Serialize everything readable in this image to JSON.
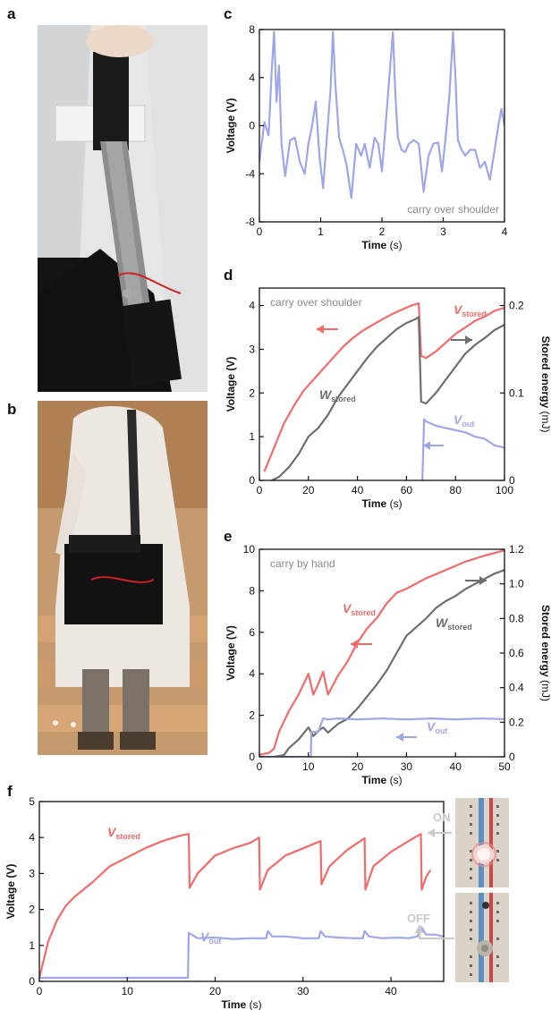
{
  "panels": {
    "a": "a",
    "b": "b",
    "c": "c",
    "d": "d",
    "e": "e",
    "f": "f"
  },
  "photo_indicators": {
    "on": "ON",
    "off": "OFF"
  },
  "colors": {
    "v_stored": "#f26b6b",
    "w_stored": "#6e6e6e",
    "v_out": "#9fa6ea",
    "indicator": "#c9c9c9"
  },
  "chart_data": [
    {
      "id": "c",
      "type": "line",
      "xlabel": "Time",
      "xunit": "(s)",
      "ylabel": "Voltage (V)",
      "xlim": [
        0,
        4
      ],
      "ylim": [
        -8,
        8
      ],
      "xticks": [
        0,
        1,
        2,
        3,
        4
      ],
      "yticks": [
        -8,
        -4,
        0,
        4,
        8
      ],
      "annotation": "carry over shoulder",
      "series": [
        {
          "color": "#9fa6ea",
          "x": [
            0,
            0.08,
            0.15,
            0.2,
            0.24,
            0.28,
            0.32,
            0.36,
            0.42,
            0.5,
            0.58,
            0.66,
            0.74,
            0.8,
            0.86,
            0.92,
            0.98,
            1.04,
            1.1,
            1.16,
            1.2,
            1.24,
            1.3,
            1.36,
            1.42,
            1.5,
            1.58,
            1.66,
            1.72,
            1.8,
            1.88,
            1.94,
            2.0,
            2.06,
            2.12,
            2.18,
            2.22,
            2.26,
            2.32,
            2.38,
            2.44,
            2.52,
            2.6,
            2.68,
            2.76,
            2.84,
            2.92,
            2.98,
            3.04,
            3.1,
            3.16,
            3.2,
            3.24,
            3.3,
            3.36,
            3.44,
            3.52,
            3.6,
            3.68,
            3.76,
            3.84,
            3.9,
            3.95,
            4.0
          ],
          "y": [
            -3,
            0.3,
            -0.8,
            4.5,
            7.8,
            2,
            5,
            -1.5,
            -4.2,
            -1.2,
            -1,
            -3,
            -4,
            -1.5,
            0,
            2,
            -2.5,
            -5.2,
            -1,
            3,
            7.8,
            3.5,
            -1,
            -2,
            -3.2,
            -6,
            -1.5,
            -2.5,
            -1.5,
            -3.5,
            -1,
            -1.5,
            -3.8,
            0,
            4,
            7.8,
            2.5,
            -1,
            -2,
            -2.2,
            -1.5,
            -1.2,
            -1.5,
            -5.5,
            -2.5,
            -1.5,
            -1.4,
            -3.8,
            -1,
            2.5,
            7.8,
            4,
            -1.2,
            -2,
            -2.5,
            -2,
            -2,
            -3.5,
            -3,
            -4.5,
            -2,
            0,
            1.4,
            0
          ]
        }
      ]
    },
    {
      "id": "d",
      "type": "line",
      "xlabel": "Time",
      "xunit": "(s)",
      "ylabel": "Voltage (V)",
      "y2label": "Stored energy",
      "y2unit": "(mJ)",
      "xlim": [
        0,
        100
      ],
      "ylim": [
        0,
        4.4
      ],
      "y2lim": [
        0,
        0.22
      ],
      "xticks": [
        0,
        20,
        40,
        60,
        80,
        100
      ],
      "yticks": [
        0,
        1,
        2,
        3,
        4
      ],
      "y2ticks": [
        0,
        0.1,
        0.2
      ],
      "annotation": "carry over shoulder",
      "series": [
        {
          "name": "V",
          "sub": "stored",
          "axis": "left",
          "color": "#f26b6b",
          "x": [
            2,
            6,
            10,
            14,
            18,
            22,
            26,
            30,
            34,
            38,
            42,
            46,
            50,
            54,
            58,
            62,
            65,
            66,
            68,
            72,
            76,
            80,
            84,
            88,
            92,
            96,
            100
          ],
          "y": [
            0.2,
            0.75,
            1.3,
            1.7,
            2.05,
            2.3,
            2.55,
            2.8,
            3.05,
            3.25,
            3.42,
            3.55,
            3.68,
            3.8,
            3.9,
            4.0,
            4.05,
            2.85,
            2.8,
            2.95,
            3.15,
            3.35,
            3.5,
            3.65,
            3.75,
            3.88,
            3.95
          ]
        },
        {
          "name": "W",
          "sub": "stored",
          "axis": "right",
          "color": "#6e6e6e",
          "x": [
            5,
            8,
            12,
            16,
            20,
            24,
            28,
            32,
            36,
            40,
            44,
            48,
            52,
            56,
            60,
            64,
            65,
            66,
            68,
            72,
            76,
            80,
            84,
            88,
            92,
            96,
            100
          ],
          "y": [
            0,
            0.004,
            0.015,
            0.03,
            0.05,
            0.06,
            0.075,
            0.095,
            0.11,
            0.125,
            0.14,
            0.153,
            0.163,
            0.173,
            0.18,
            0.185,
            0.187,
            0.09,
            0.088,
            0.1,
            0.115,
            0.13,
            0.145,
            0.155,
            0.163,
            0.172,
            0.178
          ]
        },
        {
          "name": "V",
          "sub": "out",
          "axis": "left",
          "color": "#9fa6ea",
          "x": [
            66.5,
            67.2,
            68,
            70,
            72,
            76,
            80,
            84,
            88,
            92,
            96,
            100
          ],
          "y": [
            0,
            1.4,
            1.35,
            1.3,
            1.25,
            1.2,
            1.15,
            1.1,
            1.0,
            0.95,
            0.8,
            0.75
          ]
        }
      ]
    },
    {
      "id": "e",
      "type": "line",
      "xlabel": "Time",
      "xunit": "(s)",
      "ylabel": "Voltage (V)",
      "y2label": "Stored energy",
      "y2unit": "(mJ)",
      "xlim": [
        0,
        50
      ],
      "ylim": [
        0,
        10
      ],
      "y2lim": [
        0,
        1.2
      ],
      "xticks": [
        0,
        10,
        20,
        30,
        40,
        50
      ],
      "yticks": [
        0,
        2,
        4,
        6,
        8,
        10
      ],
      "y2ticks": [
        0,
        0.2,
        0.4,
        0.6,
        0.8,
        1.0,
        1.2
      ],
      "annotation": "carry by hand",
      "series": [
        {
          "name": "V",
          "sub": "stored",
          "axis": "left",
          "color": "#f26b6b",
          "x": [
            0,
            2,
            3,
            4,
            6,
            8,
            10,
            11,
            12,
            13,
            14,
            16,
            18,
            20,
            22,
            24,
            26,
            28,
            30,
            34,
            38,
            42,
            46,
            50
          ],
          "y": [
            0.1,
            0.2,
            0.4,
            1.2,
            2.2,
            3.0,
            4.0,
            3.0,
            3.5,
            4.1,
            3.0,
            3.9,
            4.6,
            5.5,
            6.2,
            6.7,
            7.4,
            7.9,
            8.1,
            8.6,
            9.0,
            9.4,
            9.7,
            9.95
          ]
        },
        {
          "name": "W",
          "sub": "stored",
          "axis": "right",
          "color": "#6e6e6e",
          "x": [
            0,
            3,
            5,
            6,
            8,
            10,
            11,
            12,
            13,
            14,
            16,
            18,
            20,
            22,
            24,
            26,
            28,
            30,
            32,
            34,
            36,
            38,
            40,
            42,
            44,
            46,
            48,
            50
          ],
          "y": [
            0,
            0,
            0.01,
            0.05,
            0.1,
            0.17,
            0.12,
            0.15,
            0.17,
            0.14,
            0.19,
            0.22,
            0.28,
            0.35,
            0.42,
            0.5,
            0.6,
            0.7,
            0.75,
            0.8,
            0.86,
            0.9,
            0.93,
            0.97,
            1.0,
            1.03,
            1.06,
            1.08
          ]
        },
        {
          "name": "V",
          "sub": "out",
          "axis": "left",
          "color": "#9fa6ea",
          "x": [
            0,
            10.5,
            10.6,
            12,
            13,
            14,
            16,
            20,
            25,
            30,
            35,
            40,
            45,
            50
          ],
          "y": [
            0,
            0,
            1.2,
            1.2,
            1.85,
            1.8,
            1.85,
            1.8,
            1.85,
            1.8,
            1.85,
            1.8,
            1.85,
            1.82
          ]
        }
      ]
    },
    {
      "id": "f",
      "type": "line",
      "xlabel": "Time",
      "xunit": "(s)",
      "ylabel": "Voltage (V)",
      "xlim": [
        0,
        46
      ],
      "ylim": [
        0,
        5
      ],
      "xticks": [
        0,
        10,
        20,
        30,
        40
      ],
      "yticks": [
        0,
        1,
        2,
        3,
        4,
        5
      ],
      "series": [
        {
          "name": "V",
          "sub": "stored",
          "color": "#f26b6b",
          "x": [
            0,
            0.5,
            1,
            2,
            3,
            4,
            6,
            8,
            10,
            12,
            14,
            16,
            17,
            17.1,
            18,
            20,
            22,
            24,
            25,
            25.1,
            26,
            28,
            30,
            32,
            32.1,
            33,
            35,
            37,
            37.1,
            38,
            40,
            42,
            43.4,
            43.5,
            44,
            44.5
          ],
          "y": [
            0.1,
            0.6,
            1.1,
            1.7,
            2.1,
            2.35,
            2.75,
            3.2,
            3.45,
            3.7,
            3.9,
            4.05,
            4.1,
            2.6,
            3.0,
            3.5,
            3.7,
            3.85,
            4.0,
            2.55,
            3.1,
            3.5,
            3.7,
            3.9,
            2.7,
            3.2,
            3.65,
            3.98,
            2.55,
            3.2,
            3.6,
            3.9,
            4.1,
            2.55,
            2.9,
            3.1
          ]
        },
        {
          "name": "V",
          "sub": "out",
          "color": "#9fa6ea",
          "x": [
            0,
            16.9,
            17,
            18,
            20,
            22,
            24,
            25.8,
            26,
            26.5,
            28,
            30,
            31.8,
            32,
            32.5,
            34,
            36,
            36.8,
            37,
            37.5,
            39,
            41,
            42,
            43,
            43.5,
            44,
            45,
            46
          ],
          "y": [
            0.1,
            0.1,
            1.35,
            1.2,
            1.22,
            1.18,
            1.2,
            1.2,
            1.4,
            1.25,
            1.25,
            1.2,
            1.2,
            1.4,
            1.25,
            1.22,
            1.2,
            1.2,
            1.4,
            1.25,
            1.2,
            1.22,
            1.2,
            1.25,
            1.5,
            1.3,
            1.3,
            1.25
          ]
        }
      ]
    }
  ]
}
